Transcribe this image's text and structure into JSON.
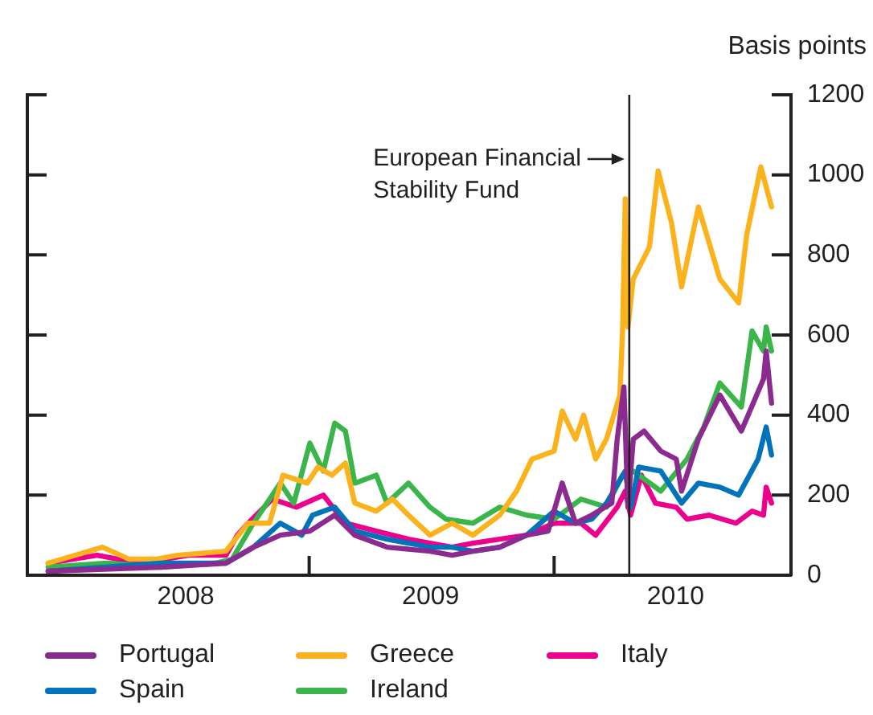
{
  "chart_data": {
    "type": "line",
    "ylabel": "Basis points",
    "legend": "bottom",
    "marker": "none",
    "line_style": "solid",
    "grid": false,
    "xlim": [
      "2007-11-08",
      "2010-12-20"
    ],
    "xticks": [
      {
        "value": "2008-07-01",
        "label": "2008"
      },
      {
        "value": "2009-01-01",
        "label": null
      },
      {
        "value": "2009-07-01",
        "label": "2009"
      },
      {
        "value": "2010-01-01",
        "label": null
      },
      {
        "value": "2010-07-01",
        "label": "2010"
      }
    ],
    "ylim": [
      0,
      1200
    ],
    "yticks": [
      0,
      200,
      400,
      600,
      800,
      1000,
      1200
    ],
    "ref_lines": [
      {
        "axis": "x",
        "value": "2010-04-23",
        "label": "European Financial Stability Fund",
        "color": "#231f20"
      }
    ],
    "series": [
      {
        "name": "Portugal",
        "color": "#8b2a8f",
        "x": [
          "2007-12-09",
          "2008-05-25",
          "2008-08-30",
          "2008-10-10",
          "2008-11-19",
          "2009-01-02",
          "2009-02-08",
          "2009-03-10",
          "2009-04-27",
          "2009-06-30",
          "2009-08-02",
          "2009-09-02",
          "2009-10-12",
          "2009-11-21",
          "2009-12-23",
          "2010-01-13",
          "2010-02-02",
          "2010-02-26",
          "2010-03-28",
          "2010-04-05",
          "2010-04-15",
          "2010-04-21",
          "2010-04-29",
          "2010-05-15",
          "2010-06-09",
          "2010-07-02",
          "2010-07-10",
          "2010-08-04",
          "2010-09-05",
          "2010-10-07",
          "2010-11-09",
          "2010-11-13",
          "2010-11-21"
        ],
        "values": [
          10,
          20,
          30,
          70,
          100,
          110,
          150,
          100,
          70,
          60,
          50,
          60,
          70,
          100,
          110,
          230,
          130,
          150,
          180,
          340,
          470,
          170,
          340,
          360,
          310,
          290,
          210,
          340,
          450,
          360,
          490,
          560,
          430
        ]
      },
      {
        "name": "Spain",
        "color": "#0073bb",
        "x": [
          "2007-12-09",
          "2008-05-25",
          "2008-08-30",
          "2008-10-10",
          "2008-11-19",
          "2008-12-21",
          "2009-01-06",
          "2009-02-08",
          "2009-03-10",
          "2009-04-27",
          "2009-06-30",
          "2009-08-02",
          "2009-09-02",
          "2009-10-12",
          "2009-11-21",
          "2010-01-01",
          "2010-02-02",
          "2010-02-26",
          "2010-03-20",
          "2010-04-17",
          "2010-04-25",
          "2010-05-07",
          "2010-06-09",
          "2010-07-10",
          "2010-08-04",
          "2010-09-05",
          "2010-10-03",
          "2010-11-01",
          "2010-11-13",
          "2010-11-21"
        ],
        "values": [
          10,
          30,
          30,
          70,
          130,
          100,
          150,
          170,
          110,
          90,
          70,
          70,
          60,
          70,
          100,
          160,
          130,
          140,
          180,
          260,
          170,
          270,
          260,
          180,
          230,
          220,
          200,
          290,
          370,
          300
        ]
      },
      {
        "name": "Greece",
        "color": "#fbb21c",
        "x": [
          "2007-12-09",
          "2008-02-28",
          "2008-04-08",
          "2008-05-17",
          "2008-06-19",
          "2008-08-30",
          "2008-10-02",
          "2008-11-03",
          "2008-11-23",
          "2008-12-29",
          "2009-01-14",
          "2009-02-04",
          "2009-02-24",
          "2009-03-10",
          "2009-04-11",
          "2009-05-05",
          "2009-05-29",
          "2009-06-30",
          "2009-08-02",
          "2009-09-02",
          "2009-10-12",
          "2009-11-06",
          "2009-11-29",
          "2010-01-01",
          "2010-01-13",
          "2010-02-02",
          "2010-02-14",
          "2010-03-04",
          "2010-03-20",
          "2010-04-09",
          "2010-04-13",
          "2010-04-17",
          "2010-04-21",
          "2010-04-29",
          "2010-05-23",
          "2010-06-05",
          "2010-06-25",
          "2010-07-10",
          "2010-08-04",
          "2010-09-05",
          "2010-10-03",
          "2010-10-15",
          "2010-11-05",
          "2010-11-21"
        ],
        "values": [
          30,
          70,
          40,
          40,
          50,
          60,
          130,
          130,
          250,
          230,
          270,
          250,
          280,
          180,
          160,
          190,
          150,
          100,
          130,
          100,
          150,
          210,
          290,
          310,
          410,
          340,
          400,
          290,
          340,
          450,
          610,
          940,
          620,
          740,
          820,
          1010,
          880,
          720,
          920,
          740,
          680,
          850,
          1020,
          920
        ]
      },
      {
        "name": "Ireland",
        "color": "#3ab54a",
        "x": [
          "2007-12-09",
          "2008-03-06",
          "2008-05-25",
          "2008-08-14",
          "2008-09-08",
          "2008-10-10",
          "2008-11-19",
          "2008-12-09",
          "2009-01-02",
          "2009-01-22",
          "2009-02-08",
          "2009-02-24",
          "2009-03-10",
          "2009-04-11",
          "2009-04-27",
          "2009-05-29",
          "2009-06-30",
          "2009-07-24",
          "2009-09-02",
          "2009-10-12",
          "2009-11-21",
          "2010-01-01",
          "2010-02-10",
          "2010-03-20",
          "2010-04-13",
          "2010-04-29",
          "2010-06-09",
          "2010-07-18",
          "2010-08-12",
          "2010-09-05",
          "2010-10-07",
          "2010-10-23",
          "2010-11-09",
          "2010-11-13",
          "2010-11-21"
        ],
        "values": [
          20,
          30,
          20,
          30,
          40,
          130,
          230,
          180,
          330,
          260,
          380,
          360,
          230,
          250,
          180,
          230,
          170,
          140,
          130,
          170,
          150,
          140,
          190,
          170,
          250,
          260,
          210,
          290,
          370,
          480,
          420,
          610,
          560,
          620,
          560
        ]
      },
      {
        "name": "Italy",
        "color": "#ec008c",
        "x": [
          "2007-12-09",
          "2008-02-20",
          "2008-04-24",
          "2008-07-05",
          "2008-08-30",
          "2008-09-16",
          "2008-10-02",
          "2008-11-07",
          "2008-12-13",
          "2009-01-22",
          "2009-02-24",
          "2009-04-11",
          "2009-05-29",
          "2009-06-30",
          "2009-08-02",
          "2009-09-02",
          "2009-11-21",
          "2010-01-01",
          "2010-02-10",
          "2010-03-04",
          "2010-04-05",
          "2010-04-17",
          "2010-04-25",
          "2010-05-11",
          "2010-06-01",
          "2010-07-02",
          "2010-07-18",
          "2010-08-20",
          "2010-09-29",
          "2010-10-23",
          "2010-11-09",
          "2010-11-13",
          "2010-11-21"
        ],
        "values": [
          30,
          50,
          30,
          50,
          50,
          100,
          130,
          190,
          170,
          200,
          130,
          110,
          90,
          80,
          70,
          80,
          100,
          130,
          130,
          100,
          170,
          210,
          150,
          250,
          180,
          170,
          140,
          150,
          130,
          160,
          150,
          220,
          180
        ]
      }
    ]
  }
}
